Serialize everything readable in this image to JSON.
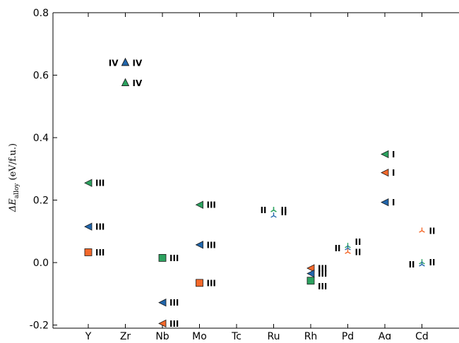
{
  "chart_data": {
    "type": "scatter",
    "title": "",
    "xlabel": "",
    "ylabel": {
      "prefix": "ΔE",
      "subscript": "alloy",
      "suffix": " (eV/f.u.)"
    },
    "ylim": [
      -0.21,
      0.8
    ],
    "yticks": [
      -0.2,
      0.0,
      0.2,
      0.4,
      0.6,
      0.8
    ],
    "ytick_labels": [
      "-0.2",
      "0.0",
      "0.2",
      "0.4",
      "0.6",
      "0.8"
    ],
    "categories": [
      "Y",
      "Zr",
      "Nb",
      "Mo",
      "Tc",
      "Ru",
      "Rh",
      "Pd",
      "Ag",
      "Cd"
    ],
    "grid": false,
    "legend": "none",
    "colors": {
      "green": "#2ca25f",
      "blue": "#2166ac",
      "orange": "#f4682a",
      "stroke": "#1a1a1a"
    },
    "points": [
      {
        "x": "Y",
        "y": 0.255,
        "marker": "triangle-left",
        "color": "green",
        "label": "III",
        "label_side": "right"
      },
      {
        "x": "Y",
        "y": 0.115,
        "marker": "triangle-left",
        "color": "blue",
        "label": "III",
        "label_side": "right"
      },
      {
        "x": "Y",
        "y": 0.033,
        "marker": "square",
        "color": "orange",
        "label": "III",
        "label_side": "right"
      },
      {
        "x": "Zr",
        "y": 0.64,
        "marker": "triangle-up",
        "color": "blue",
        "label": "IV",
        "label_side": "right"
      },
      {
        "x": "Zr",
        "y": 0.64,
        "marker": "triangle-up",
        "color": "blue",
        "label": "IV",
        "label_side": "left"
      },
      {
        "x": "Zr",
        "y": 0.575,
        "marker": "triangle-up",
        "color": "green",
        "label": "IV",
        "label_side": "right"
      },
      {
        "x": "Nb",
        "y": 0.015,
        "marker": "square",
        "color": "green",
        "label": "III",
        "label_side": "right"
      },
      {
        "x": "Nb",
        "y": -0.128,
        "marker": "triangle-left",
        "color": "blue",
        "label": "III",
        "label_side": "right"
      },
      {
        "x": "Nb",
        "y": -0.195,
        "marker": "triangle-left",
        "color": "orange",
        "label": "III",
        "label_side": "right"
      },
      {
        "x": "Mo",
        "y": 0.185,
        "marker": "triangle-left",
        "color": "green",
        "label": "III",
        "label_side": "right"
      },
      {
        "x": "Mo",
        "y": 0.057,
        "marker": "triangle-left",
        "color": "blue",
        "label": "III",
        "label_side": "right"
      },
      {
        "x": "Mo",
        "y": -0.065,
        "marker": "square",
        "color": "orange",
        "label": "III",
        "label_side": "right"
      },
      {
        "x": "Ru",
        "y": 0.168,
        "marker": "tri-down",
        "color": "green",
        "label": "II",
        "label_side": "right"
      },
      {
        "x": "Ru",
        "y": 0.168,
        "marker": "tri-down",
        "color": "green",
        "label": "II",
        "label_side": "left"
      },
      {
        "x": "Ru",
        "y": 0.15,
        "marker": "tri-down",
        "color": "blue",
        "label": "II",
        "label_side": "right",
        "label_dy": 0.012
      },
      {
        "x": "Rh",
        "y": -0.018,
        "marker": "triangle-left",
        "color": "orange",
        "label": "III",
        "label_side": "right"
      },
      {
        "x": "Rh",
        "y": -0.035,
        "marker": "triangle-left",
        "color": "blue",
        "label": "III",
        "label_side": "right"
      },
      {
        "x": "Rh",
        "y": -0.058,
        "marker": "square",
        "color": "green",
        "label": "III",
        "label_side": "right",
        "label_dy": -0.018
      },
      {
        "x": "Pd",
        "y": 0.053,
        "marker": "tri-down",
        "color": "green",
        "label": "II",
        "label_side": "right",
        "label_dy": 0.014
      },
      {
        "x": "Pd",
        "y": 0.046,
        "marker": "tri-down",
        "color": "blue",
        "label": "II",
        "label_side": "left"
      },
      {
        "x": "Pd",
        "y": 0.034,
        "marker": "tri-down",
        "color": "orange",
        "label": "II",
        "label_side": "right"
      },
      {
        "x": "Ag",
        "y": 0.347,
        "marker": "triangle-left",
        "color": "green",
        "label": "I",
        "label_side": "right"
      },
      {
        "x": "Ag",
        "y": 0.288,
        "marker": "triangle-left",
        "color": "orange",
        "label": "I",
        "label_side": "right"
      },
      {
        "x": "Ag",
        "y": 0.193,
        "marker": "triangle-left",
        "color": "blue",
        "label": "I",
        "label_side": "right"
      },
      {
        "x": "Cd",
        "y": 0.102,
        "marker": "tri-down",
        "color": "orange",
        "label": "II",
        "label_side": "right"
      },
      {
        "x": "Cd",
        "y": 0.001,
        "marker": "tri-down",
        "color": "green",
        "label": "II",
        "label_side": "right"
      },
      {
        "x": "Cd",
        "y": -0.006,
        "marker": "tri-down",
        "color": "blue",
        "label": "II",
        "label_side": "left"
      }
    ]
  }
}
